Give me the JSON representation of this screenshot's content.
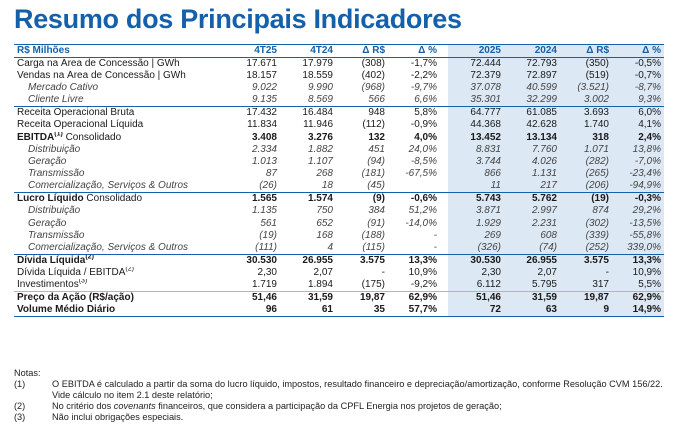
{
  "title": "Resumo dos Principais Indicadores",
  "header": {
    "label": "R$ Milhões",
    "cols": [
      "4T25",
      "4T24",
      "Δ R$",
      "Δ %",
      "2025",
      "2024",
      "Δ R$",
      "Δ %"
    ]
  },
  "rows": [
    {
      "label": "Carga na Área de Concessão | GWh",
      "sup": "",
      "label_extra": "",
      "vals": [
        "17.671",
        "17.979",
        "(308)",
        "-1,7%",
        "72.444",
        "72.793",
        "(350)",
        "-0,5%"
      ]
    },
    {
      "label": "Vendas na Área de Concessão | GWh",
      "sup": "",
      "label_extra": "",
      "vals": [
        "18.157",
        "18.559",
        "(402)",
        "-2,2%",
        "72.379",
        "72.897",
        "(519)",
        "-0,7%"
      ]
    },
    {
      "label": "Mercado Cativo",
      "sup": "",
      "label_extra": "",
      "vals": [
        "9.022",
        "9.990",
        "(968)",
        "-9,7%",
        "37.078",
        "40.599",
        "(3.521)",
        "-8,7%"
      ]
    },
    {
      "label": "Cliente Livre",
      "sup": "",
      "label_extra": "",
      "vals": [
        "9.135",
        "8.569",
        "566",
        "6,6%",
        "35.301",
        "32.299",
        "3.002",
        "9,3%"
      ]
    },
    {
      "label": "Receita Operacional Bruta",
      "sup": "",
      "label_extra": "",
      "vals": [
        "17.432",
        "16.484",
        "948",
        "5,8%",
        "64.777",
        "61.085",
        "3.693",
        "6,0%"
      ]
    },
    {
      "label": "Receita Operacional Líquida",
      "sup": "",
      "label_extra": "",
      "vals": [
        "11.834",
        "11.946",
        "(112)",
        "-0,9%",
        "44.368",
        "42.628",
        "1.740",
        "4,1%"
      ]
    },
    {
      "label": "EBITDA",
      "sup": "(1)",
      "label_extra": " Consolidado",
      "vals": [
        "3.408",
        "3.276",
        "132",
        "4,0%",
        "13.452",
        "13.134",
        "318",
        "2,4%"
      ]
    },
    {
      "label": "Distribuição",
      "sup": "",
      "label_extra": "",
      "vals": [
        "2.334",
        "1.882",
        "451",
        "24,0%",
        "8.831",
        "7.760",
        "1.071",
        "13,8%"
      ]
    },
    {
      "label": "Geração",
      "sup": "",
      "label_extra": "",
      "vals": [
        "1.013",
        "1.107",
        "(94)",
        "-8,5%",
        "3.744",
        "4.026",
        "(282)",
        "-7,0%"
      ]
    },
    {
      "label": "Transmissão",
      "sup": "",
      "label_extra": "",
      "vals": [
        "87",
        "268",
        "(181)",
        "-67,5%",
        "866",
        "1.131",
        "(265)",
        "-23,4%"
      ]
    },
    {
      "label": "Comercialização, Serviços & Outros",
      "sup": "",
      "label_extra": "",
      "vals": [
        "(26)",
        "18",
        "(45)",
        "",
        "11",
        "217",
        "(206)",
        "-94,9%"
      ]
    },
    {
      "label": "Lucro Líquido",
      "sup": "",
      "label_extra": " Consolidado",
      "vals": [
        "1.565",
        "1.574",
        "(9)",
        "-0,6%",
        "5.743",
        "5.762",
        "(19)",
        "-0,3%"
      ]
    },
    {
      "label": "Distribuição",
      "sup": "",
      "label_extra": "",
      "vals": [
        "1.135",
        "750",
        "384",
        "51,2%",
        "3.871",
        "2.997",
        "874",
        "29,2%"
      ]
    },
    {
      "label": "Geração",
      "sup": "",
      "label_extra": "",
      "vals": [
        "561",
        "652",
        "(91)",
        "-14,0%",
        "1.929",
        "2.231",
        "(302)",
        "-13,5%"
      ]
    },
    {
      "label": "Transmissão",
      "sup": "",
      "label_extra": "",
      "vals": [
        "(19)",
        "168",
        "(188)",
        "-",
        "269",
        "608",
        "(339)",
        "-55,8%"
      ]
    },
    {
      "label": "Comercialização, Serviços & Outros",
      "sup": "",
      "label_extra": "",
      "vals": [
        "(111)",
        "4",
        "(115)",
        "-",
        "(326)",
        "(74)",
        "(252)",
        "339,0%"
      ]
    },
    {
      "label": "Dívida Líquida",
      "sup": "(2)",
      "label_extra": "",
      "vals": [
        "30.530",
        "26.955",
        "3.575",
        "13,3%",
        "30.530",
        "26.955",
        "3.575",
        "13,3%"
      ]
    },
    {
      "label": "Dívida Líquida / EBITDA",
      "sup": "(2)",
      "label_extra": "",
      "vals": [
        "2,30",
        "2,07",
        "-",
        "10,9%",
        "2,30",
        "2,07",
        "-",
        "10,9%"
      ]
    },
    {
      "label": "Investimentos",
      "sup": "(3)",
      "label_extra": "",
      "vals": [
        "1.719",
        "1.894",
        "(175)",
        "-9,2%",
        "6.112",
        "5.795",
        "317",
        "5,5%"
      ]
    },
    {
      "label": "Preço da Ação (R$/ação)",
      "sup": "",
      "label_extra": "",
      "vals": [
        "51,46",
        "31,59",
        "19,87",
        "62,9%",
        "51,46",
        "31,59",
        "19,87",
        "62,9%"
      ]
    },
    {
      "label": "Volume Médio Diário",
      "sup": "",
      "label_extra": "",
      "vals": [
        "96",
        "61",
        "35",
        "57,7%",
        "72",
        "63",
        "9",
        "14,9%"
      ]
    }
  ],
  "notes": {
    "heading": "Notas:",
    "items": [
      {
        "num": "(1)",
        "text": "O EBITDA é calculado a partir da soma do lucro líquido, impostos, resultado financeiro e depreciação/amortização, conforme Resolução CVM 156/22. Vide cálculo no item 2.1 deste relatório;"
      },
      {
        "num": "(2)",
        "text_before": "No critério dos ",
        "text_em": "covenants",
        "text_after": " financeiros, que considera a participação da CPFL Energia nos projetos de geração;"
      },
      {
        "num": "(3)",
        "text": "Não inclui obrigações especiais."
      }
    ]
  }
}
